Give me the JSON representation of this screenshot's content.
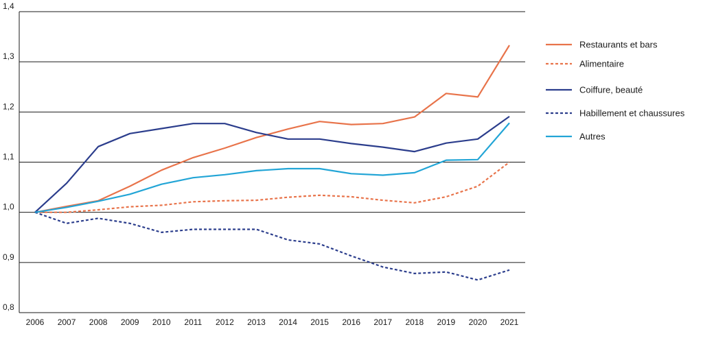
{
  "chart_data": {
    "type": "line",
    "title": "",
    "xlabel": "",
    "ylabel": "",
    "x": [
      "2006",
      "2007",
      "2008",
      "2009",
      "2010",
      "2011",
      "2012",
      "2013",
      "2014",
      "2015",
      "2016",
      "2017",
      "2018",
      "2019",
      "2020",
      "2021"
    ],
    "ylim": [
      0.8,
      1.4
    ],
    "yticks": [
      {
        "value": 0.8,
        "label": "0,8"
      },
      {
        "value": 0.9,
        "label": "0,9"
      },
      {
        "value": 1.0,
        "label": "1,0"
      },
      {
        "value": 1.1,
        "label": "1,1"
      },
      {
        "value": 1.2,
        "label": "1,2"
      },
      {
        "value": 1.3,
        "label": "1,3"
      },
      {
        "value": 1.4,
        "label": "1,4"
      }
    ],
    "grid": "horizontal",
    "legend_position": "right",
    "series": [
      {
        "name": "Restaurants et bars",
        "color": "#e8734a",
        "dashed": false,
        "values": [
          1.0,
          1.012,
          1.023,
          1.052,
          1.084,
          1.109,
          1.128,
          1.149,
          1.166,
          1.181,
          1.175,
          1.177,
          1.19,
          1.237,
          1.23,
          1.333
        ]
      },
      {
        "name": "Alimentaire",
        "color": "#e8734a",
        "dashed": true,
        "values": [
          1.0,
          1.0,
          1.005,
          1.011,
          1.014,
          1.021,
          1.023,
          1.024,
          1.03,
          1.034,
          1.031,
          1.024,
          1.019,
          1.031,
          1.052,
          1.1
        ]
      },
      {
        "name": "Coiffure, beauté",
        "color": "#2b3d8c",
        "dashed": false,
        "values": [
          1.0,
          1.058,
          1.131,
          1.157,
          1.167,
          1.177,
          1.177,
          1.159,
          1.146,
          1.146,
          1.137,
          1.13,
          1.121,
          1.138,
          1.146,
          1.191
        ]
      },
      {
        "name": "Habillement et chaussures",
        "color": "#2b3d8c",
        "dashed": true,
        "values": [
          1.0,
          0.978,
          0.988,
          0.978,
          0.96,
          0.966,
          0.966,
          0.966,
          0.945,
          0.937,
          0.913,
          0.891,
          0.878,
          0.881,
          0.865,
          0.885
        ]
      },
      {
        "name": "Autres",
        "color": "#22a5d6",
        "dashed": false,
        "values": [
          1.0,
          1.01,
          1.022,
          1.036,
          1.056,
          1.069,
          1.075,
          1.083,
          1.087,
          1.087,
          1.077,
          1.074,
          1.079,
          1.104,
          1.105,
          1.178
        ]
      }
    ]
  }
}
